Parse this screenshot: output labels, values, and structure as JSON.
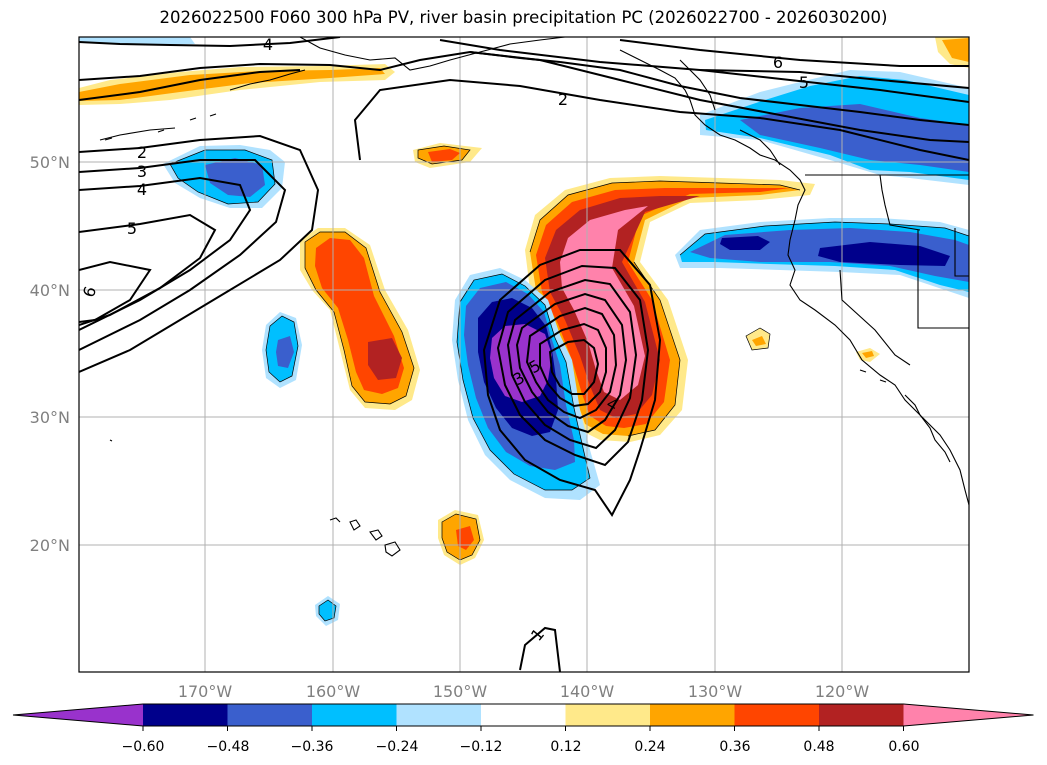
{
  "title": "2026022500 F060 300 hPa PV, river basin precipitation PC (2026022700 - 2026030200)",
  "lat_labels": [
    "50°N",
    "40°N",
    "30°N",
    "20°N"
  ],
  "lon_labels": [
    "170°W",
    "160°W",
    "150°W",
    "140°W",
    "130°W",
    "120°W"
  ],
  "colorbar": {
    "ticks": [
      "−0.60",
      "−0.48",
      "−0.36",
      "−0.24",
      "−0.12",
      "0.12",
      "0.24",
      "0.36",
      "0.48",
      "0.60"
    ],
    "colors": [
      "#9932cc",
      "#00008b",
      "#3a5fcd",
      "#00bfff",
      "#b0e2ff",
      "#ffffff",
      "#ffe98a",
      "#ffa500",
      "#ff4500",
      "#b22222",
      "#ff82ab"
    ]
  },
  "contour_labels": [
    "4",
    "6",
    "5",
    "2",
    "2",
    "3",
    "4",
    "5",
    "6",
    "1",
    "5",
    "3",
    "4"
  ],
  "colors": {
    "pv_contour": "#000000",
    "coastline": "#000000",
    "gridline": "#b0b0b0"
  }
}
